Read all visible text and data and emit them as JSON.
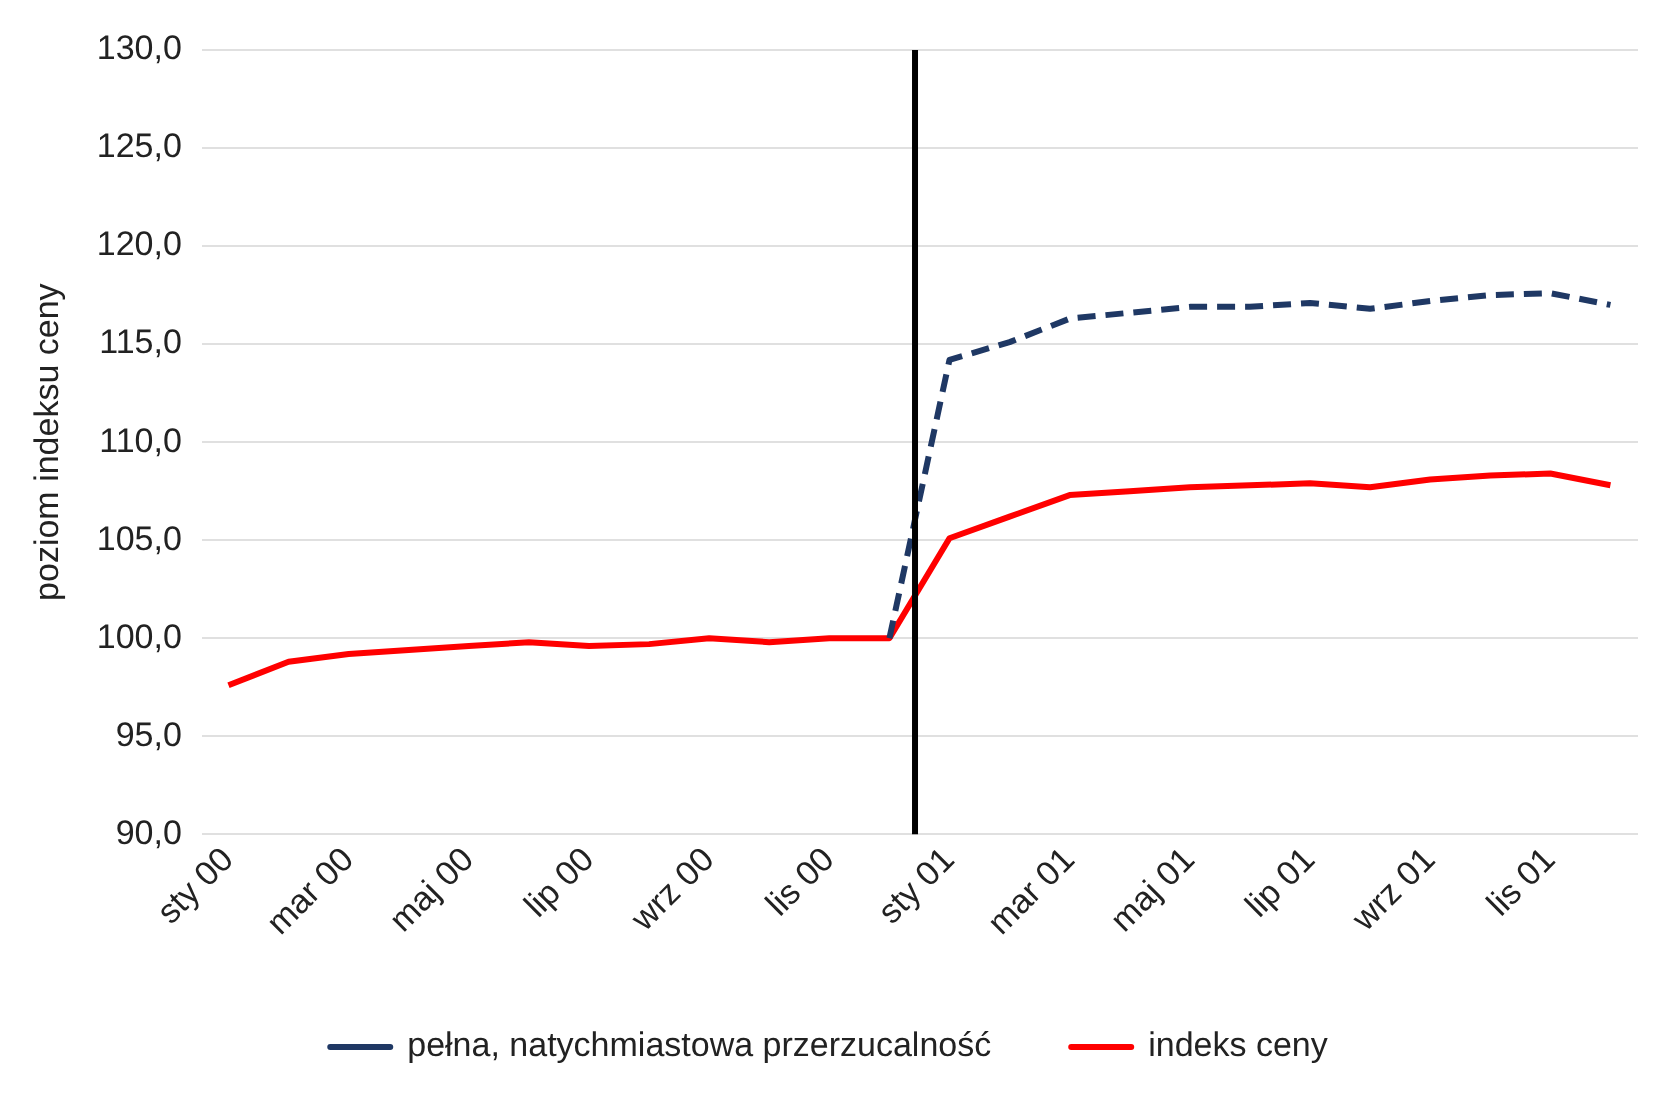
{
  "chart_data": {
    "type": "line",
    "ylabel": "poziom indeksu ceny",
    "x": [
      "2000-01",
      "2000-02",
      "2000-03",
      "2000-04",
      "2000-05",
      "2000-06",
      "2000-07",
      "2000-08",
      "2000-09",
      "2000-10",
      "2000-11",
      "2000-12",
      "2001-01",
      "2001-02",
      "2001-03",
      "2001-04",
      "2001-05",
      "2001-06",
      "2001-07",
      "2001-08",
      "2001-09",
      "2001-10",
      "2001-11",
      "2001-12"
    ],
    "series": [
      {
        "name": "pełna, natychmiastowa przerzucalność",
        "color": "#1f3864",
        "line_style": "dashed",
        "values": [
          null,
          null,
          null,
          null,
          null,
          null,
          null,
          null,
          null,
          null,
          null,
          100.0,
          114.2,
          115.1,
          116.3,
          116.6,
          116.9,
          116.9,
          117.1,
          116.8,
          117.2,
          117.5,
          117.6,
          117.0
        ]
      },
      {
        "name": "indeks ceny",
        "color": "#ff0000",
        "line_style": "solid",
        "values": [
          97.6,
          98.8,
          99.2,
          99.4,
          99.6,
          99.8,
          99.6,
          99.7,
          100.0,
          99.8,
          100.0,
          100.0,
          105.1,
          106.2,
          107.3,
          107.5,
          107.7,
          107.8,
          107.9,
          107.7,
          108.1,
          108.3,
          108.4,
          107.8
        ]
      }
    ],
    "xlim": [
      "1999-12-18",
      "2001-12-15"
    ],
    "xticks": [
      {
        "value": "2000-01",
        "label": "sty 00"
      },
      {
        "value": "2000-03",
        "label": "mar 00"
      },
      {
        "value": "2000-05",
        "label": "maj 00"
      },
      {
        "value": "2000-07",
        "label": "lip 00"
      },
      {
        "value": "2000-09",
        "label": "wrz 00"
      },
      {
        "value": "2000-11",
        "label": "lis 00"
      },
      {
        "value": "2001-01",
        "label": "sty 01"
      },
      {
        "value": "2001-03",
        "label": "mar 01"
      },
      {
        "value": "2001-05",
        "label": "maj 01"
      },
      {
        "value": "2001-07",
        "label": "lip 01"
      },
      {
        "value": "2001-09",
        "label": "wrz 01"
      },
      {
        "value": "2001-11",
        "label": "lis 01"
      }
    ],
    "ylim": [
      90,
      130
    ],
    "yticks": [
      {
        "value": 90,
        "label": "90,0"
      },
      {
        "value": 95,
        "label": "95,0"
      },
      {
        "value": 100,
        "label": "100,0"
      },
      {
        "value": 105,
        "label": "105,0"
      },
      {
        "value": 110,
        "label": "110,0"
      },
      {
        "value": 115,
        "label": "115,0"
      },
      {
        "value": 120,
        "label": "120,0"
      },
      {
        "value": 125,
        "label": "125,0"
      },
      {
        "value": 130,
        "label": "130,0"
      }
    ],
    "ref_lines": [
      {
        "axis": "x",
        "value": "2000-12-14",
        "color": "#000000"
      }
    ],
    "grid": "y",
    "legend": "bottom",
    "marker": "none"
  }
}
